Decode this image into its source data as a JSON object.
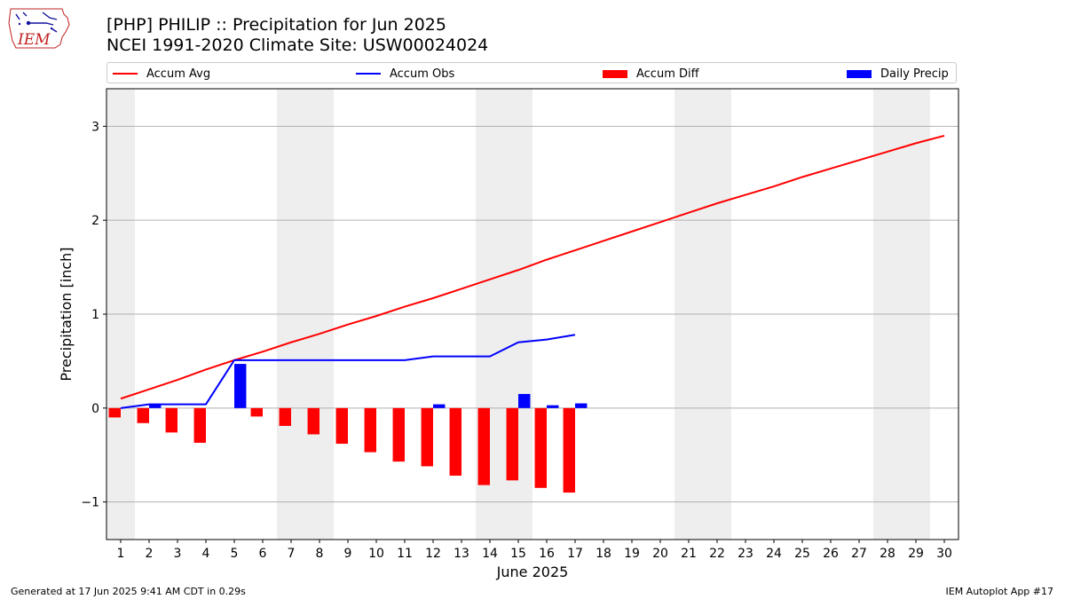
{
  "header": {
    "title_line1": "[PHP] PHILIP :: Precipitation for Jun 2025",
    "title_line2": "NCEI 1991-2020 Climate Site: USW00024024",
    "logo_text": "IEM"
  },
  "legend": {
    "accum_avg": "Accum Avg",
    "accum_obs": "Accum Obs",
    "accum_diff": "Accum Diff",
    "daily_precip": "Daily Precip"
  },
  "footer": {
    "generated": "Generated at 17 Jun 2025 9:41 AM CDT in 0.29s",
    "app": "IEM Autoplot App #17"
  },
  "colors": {
    "accum_avg": "#ff0000",
    "accum_obs": "#0000ff",
    "accum_diff": "#ff0000",
    "daily_precip": "#0000ff",
    "weekend_band": "#eeeeee",
    "grid": "#b0b0b0"
  },
  "chart_data": {
    "type": "bar",
    "xlabel": "June 2025",
    "ylabel": "Precipitation [inch]",
    "xlim": [
      0.5,
      30.5
    ],
    "ylim": [
      -1.4,
      3.4
    ],
    "grid": "y-only",
    "legend_position": "top",
    "x_ticks": [
      "1",
      "2",
      "3",
      "4",
      "5",
      "6",
      "7",
      "8",
      "9",
      "10",
      "11",
      "12",
      "13",
      "14",
      "15",
      "16",
      "17",
      "18",
      "19",
      "20",
      "21",
      "22",
      "23",
      "24",
      "25",
      "26",
      "27",
      "28",
      "29",
      "30"
    ],
    "y_ticks": [
      -1,
      0,
      1,
      2,
      3
    ],
    "weekend_bands": [
      [
        0.5,
        1.5
      ],
      [
        6.5,
        8.5
      ],
      [
        13.5,
        15.5
      ],
      [
        20.5,
        22.5
      ],
      [
        27.5,
        29.5
      ]
    ],
    "series": [
      {
        "name": "Accum Avg",
        "kind": "line",
        "x": [
          1,
          2,
          3,
          4,
          5,
          6,
          7,
          8,
          9,
          10,
          11,
          12,
          13,
          14,
          15,
          16,
          17,
          18,
          19,
          20,
          21,
          22,
          23,
          24,
          25,
          26,
          27,
          28,
          29,
          30
        ],
        "values": [
          0.1,
          0.2,
          0.3,
          0.41,
          0.51,
          0.6,
          0.7,
          0.79,
          0.89,
          0.98,
          1.08,
          1.17,
          1.27,
          1.37,
          1.47,
          1.58,
          1.68,
          1.78,
          1.88,
          1.98,
          2.08,
          2.18,
          2.27,
          2.36,
          2.46,
          2.55,
          2.64,
          2.73,
          2.82,
          2.9
        ]
      },
      {
        "name": "Accum Obs",
        "kind": "line",
        "x": [
          1,
          2,
          3,
          4,
          5,
          6,
          7,
          8,
          9,
          10,
          11,
          12,
          13,
          14,
          15,
          16,
          17
        ],
        "values": [
          0.0,
          0.04,
          0.04,
          0.04,
          0.51,
          0.51,
          0.51,
          0.51,
          0.51,
          0.51,
          0.51,
          0.55,
          0.55,
          0.55,
          0.7,
          0.73,
          0.78
        ]
      },
      {
        "name": "Accum Diff",
        "kind": "bar",
        "x": [
          1,
          2,
          3,
          4,
          5,
          6,
          7,
          8,
          9,
          10,
          11,
          12,
          13,
          14,
          15,
          16,
          17
        ],
        "values": [
          -0.1,
          -0.16,
          -0.26,
          -0.37,
          0.0,
          -0.09,
          -0.19,
          -0.28,
          -0.38,
          -0.47,
          -0.57,
          -0.62,
          -0.72,
          -0.82,
          -0.77,
          -0.85,
          -0.9
        ]
      },
      {
        "name": "Daily Precip",
        "kind": "bar",
        "x": [
          1,
          2,
          3,
          4,
          5,
          6,
          7,
          8,
          9,
          10,
          11,
          12,
          13,
          14,
          15,
          16,
          17
        ],
        "values": [
          0.0,
          0.04,
          0.0,
          0.0,
          0.47,
          0.0,
          0.0,
          0.0,
          0.0,
          0.0,
          0.0,
          0.04,
          0.0,
          0.0,
          0.15,
          0.03,
          0.05
        ]
      }
    ]
  }
}
